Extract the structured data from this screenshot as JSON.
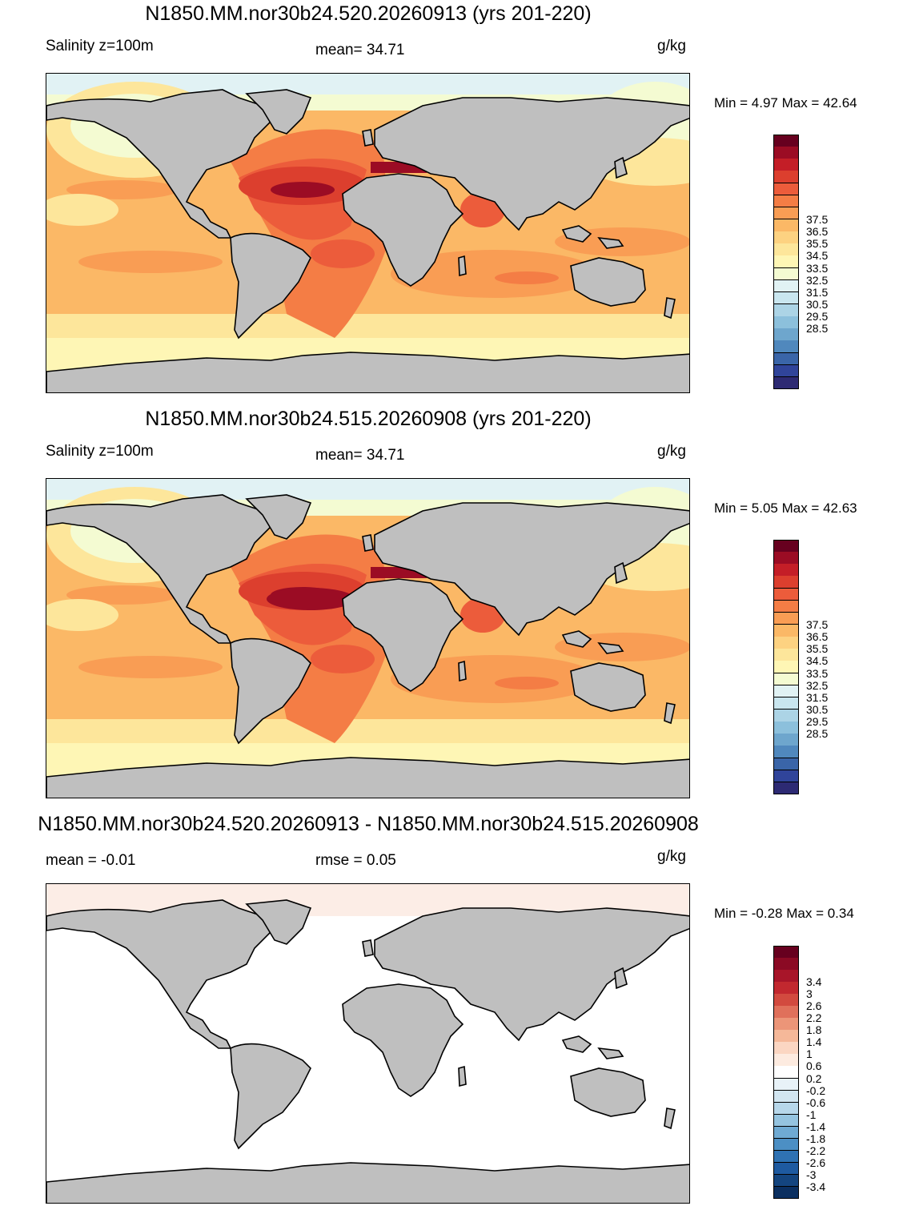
{
  "panels": [
    {
      "title": "N1850.MM.nor30b24.520.20260913 (yrs 201-220)",
      "left_label": "Salinity z=100m",
      "center_label": "mean=  34.71",
      "units": "g/kg",
      "minmax": "Min =   4.97 Max =  42.64",
      "map_style": "salinity"
    },
    {
      "title": "N1850.MM.nor30b24.515.20260908 (yrs 201-220)",
      "left_label": "Salinity z=100m",
      "center_label": "mean=  34.71",
      "units": "g/kg",
      "minmax": "Min =   5.05 Max =  42.63",
      "map_style": "salinity"
    },
    {
      "title": "N1850.MM.nor30b24.520.20260913 - N1850.MM.nor30b24.515.20260908",
      "left_label": "mean =  -0.01",
      "center_label": "rmse =    0.05",
      "units": "g/kg",
      "minmax": "Min =  -0.28 Max =   0.34",
      "map_style": "difference"
    }
  ],
  "salinity_colorbar": {
    "labels": [
      "37.5",
      "36.5",
      "35.5",
      "34.5",
      "33.5",
      "32.5",
      "31.5",
      "30.5",
      "29.5",
      "28.5"
    ],
    "colors": [
      "#67001f",
      "#9b0c24",
      "#c41e27",
      "#dc3f2e",
      "#ec5c3b",
      "#f47d45",
      "#f99d54",
      "#fbb866",
      "#fdd281",
      "#fde69b",
      "#fef6b5",
      "#f4fbd2",
      "#e1f2f4",
      "#c9e6ef",
      "#acd4e6",
      "#8cc0dc",
      "#6ea6cd",
      "#5088bd",
      "#3a65a8",
      "#30449a",
      "#2d2a73"
    ]
  },
  "difference_colorbar": {
    "labels": [
      "3.4",
      "3",
      "2.6",
      "2.2",
      "1.8",
      "1.4",
      "1",
      "0.6",
      "0.2",
      "-0.2",
      "-0.6",
      "-1",
      "-1.4",
      "-1.8",
      "-2.2",
      "-2.6",
      "-3",
      "-3.4"
    ],
    "colors": [
      "#67001f",
      "#8b0a24",
      "#a81529",
      "#c2282f",
      "#d24a3f",
      "#e0705b",
      "#ec9578",
      "#f5b899",
      "#fbd6c2",
      "#fdebe0",
      "#ffffff",
      "#e8f2f8",
      "#d2e6f1",
      "#b7d7ea",
      "#95c4e0",
      "#6faad3",
      "#4c8fc4",
      "#2f72b3",
      "#1e5aa0",
      "#14457f",
      "#0b2f60"
    ]
  }
}
